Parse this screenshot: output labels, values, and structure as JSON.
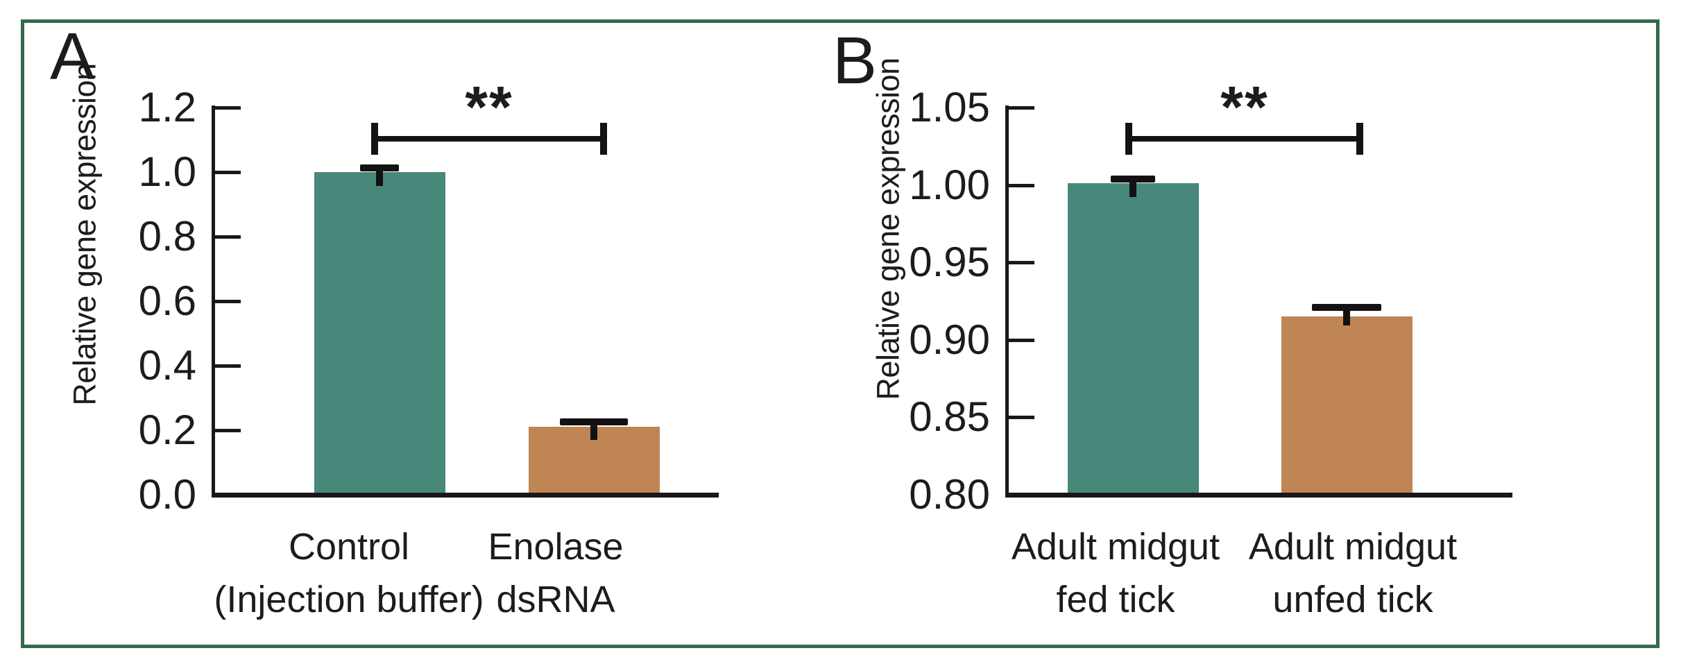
{
  "figure": {
    "border_color": "#35694a",
    "background_color": "#ffffff",
    "accent_teal": "#47887A",
    "accent_orange": "#BF8554"
  },
  "chart_data": [
    {
      "type": "bar",
      "panel_label": "A",
      "title": "",
      "xlabel": "",
      "ylabel": "Relative gene expression",
      "categories": [
        [
          "Control",
          "(Injection buffer)"
        ],
        [
          "Enolase",
          "dsRNA"
        ]
      ],
      "values": [
        1.0,
        0.21
      ],
      "errors_upper": [
        0.012,
        0.016
      ],
      "ylim": [
        0,
        1.2
      ],
      "yticks": [
        1.2,
        1.0,
        0.8,
        0.6,
        0.4,
        0.2,
        0.0
      ],
      "ytick_labels": [
        "1.2",
        "1.0",
        "0.8",
        "0.6",
        "0.4",
        "0.2",
        "0.0"
      ],
      "significance": "**",
      "bar_colors": [
        "#47887A",
        "#BF8554"
      ],
      "grid": false,
      "legend": "none"
    },
    {
      "type": "bar",
      "panel_label": "B",
      "title": "",
      "xlabel": "",
      "ylabel": "Relative gene expression",
      "categories": [
        [
          "Adult midgut",
          "fed tick"
        ],
        [
          "Adult midgut",
          "unfed tick"
        ]
      ],
      "values": [
        1.001,
        0.915
      ],
      "errors_upper": [
        0.003,
        0.006
      ],
      "ylim": [
        0.8,
        1.05
      ],
      "yticks": [
        1.05,
        1.0,
        0.95,
        0.9,
        0.85,
        0.8
      ],
      "ytick_labels": [
        "1.05",
        "1.00",
        "0.95",
        "0.90",
        "0.85",
        "0.80"
      ],
      "significance": "**",
      "bar_colors": [
        "#47887A",
        "#BF8554"
      ],
      "grid": false,
      "legend": "none"
    }
  ]
}
